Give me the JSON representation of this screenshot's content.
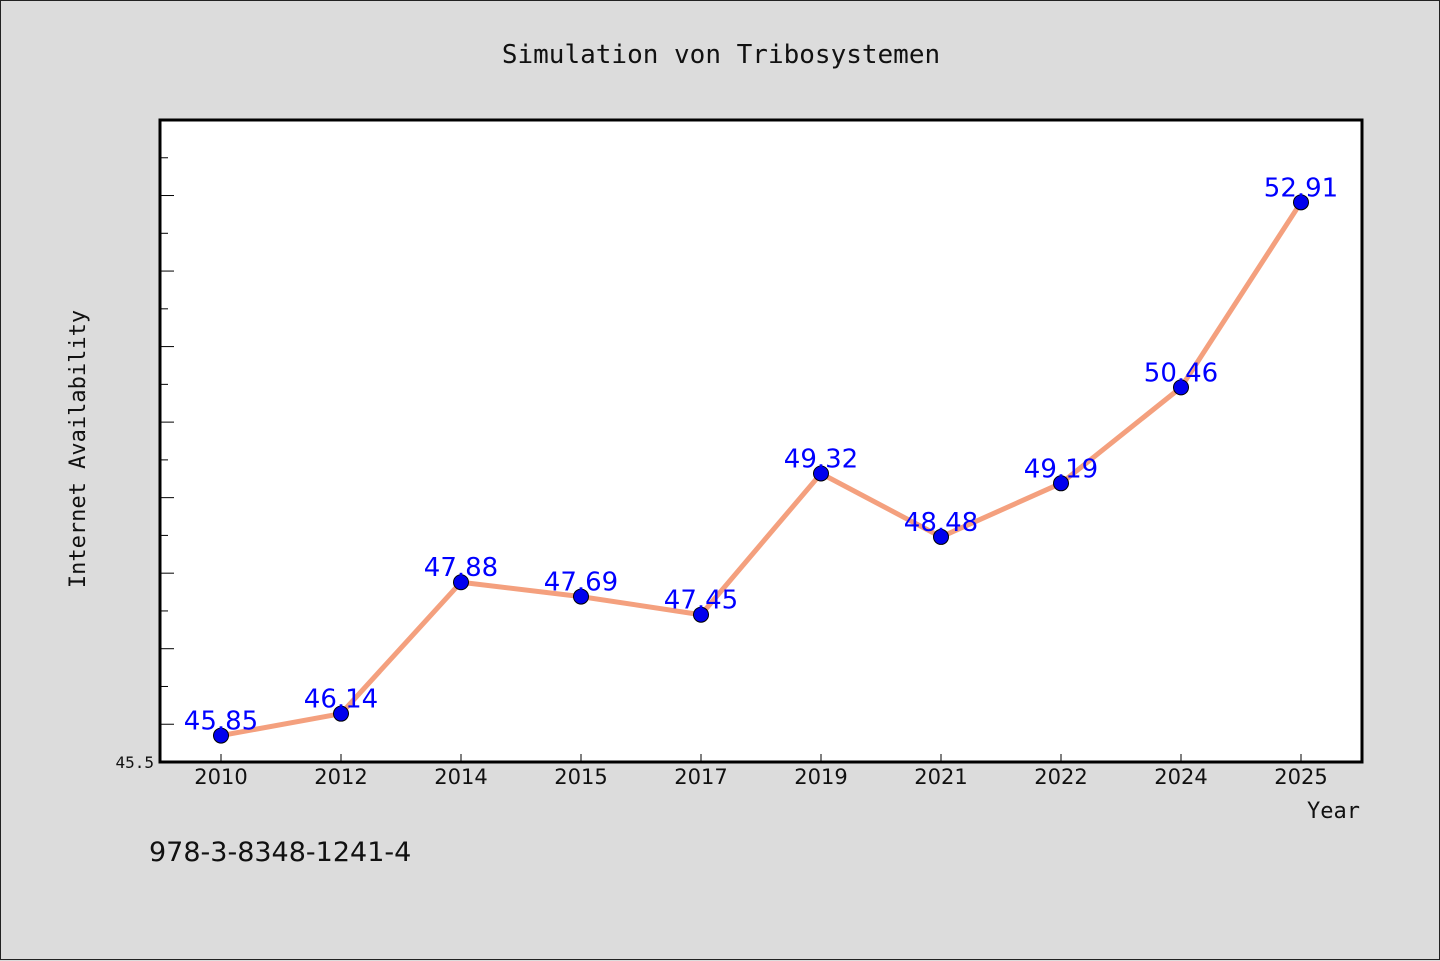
{
  "chart_data": {
    "type": "line",
    "title": "Simulation von Tribosystemen",
    "xlabel": "Year",
    "ylabel": "Internet Availability",
    "categories": [
      "2010",
      "2012",
      "2014",
      "2015",
      "2017",
      "2019",
      "2021",
      "2022",
      "2024",
      "2025"
    ],
    "series": [
      {
        "values": [
          45.85,
          46.14,
          47.88,
          47.69,
          47.45,
          49.32,
          48.48,
          49.19,
          50.46,
          52.91
        ],
        "labels": [
          "45.85",
          "46.14",
          "47.88",
          "47.69",
          "47.45",
          "49.32",
          "48.48",
          "49.19",
          "50.46",
          "52.91"
        ]
      }
    ],
    "ylim": [
      45.5,
      54.0
    ],
    "y_tick_labels": [
      "45.5"
    ],
    "grid": false,
    "colors": {
      "line": "#f4a07e",
      "marker": "#0000ee",
      "data_label": "#0000ff",
      "plot_background": "#ffffff",
      "page_background": "#dcdcdc"
    }
  },
  "footer": {
    "isbn": "978-3-8348-1241-4"
  }
}
